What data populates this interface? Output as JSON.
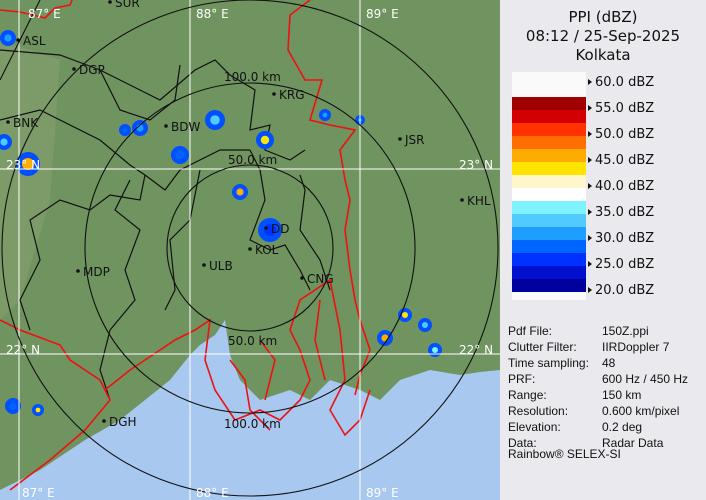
{
  "panel": {
    "product": "PPI (dBZ)",
    "datetime": "08:12 / 25-Sep-2025",
    "site": "Kolkata",
    "legend": {
      "labels": [
        "60.0 dBZ",
        "55.0 dBZ",
        "50.0 dBZ",
        "45.0 dBZ",
        "40.0 dBZ",
        "35.0 dBZ",
        "30.0 dBZ",
        "25.0 dBZ",
        "20.0 dBZ"
      ],
      "colors": [
        "#a00000",
        "#d20000",
        "#ff3200",
        "#ff6e00",
        "#ffac00",
        "#ffe400",
        "#fff6cc",
        "#ffffff",
        "#7ef2ff",
        "#50caff",
        "#1e9eff",
        "#0064ff",
        "#0032ff",
        "#0010cc",
        "#00009c"
      ]
    },
    "info": [
      {
        "key": "Pdf File:",
        "value": "150Z.ppi"
      },
      {
        "key": "Clutter Filter:",
        "value": "IIRDoppler 7"
      },
      {
        "key": "Time sampling:",
        "value": "48"
      },
      {
        "key": "PRF:",
        "value": "600 Hz / 450 Hz"
      },
      {
        "key": "Range:",
        "value": "150 km"
      },
      {
        "key": "Resolution:",
        "value": "0.600 km/pixel"
      },
      {
        "key": "Elevation:",
        "value": "0.2 deg"
      },
      {
        "key": "Data:",
        "value": "Radar Data"
      }
    ],
    "credit": "Rainbow® SELEX-SI"
  },
  "map": {
    "colors": {
      "land": "#6f9460",
      "sea": "#a8c8f0",
      "district": "#111111",
      "border": "#ee1111",
      "rings": "#111111",
      "grid": "#ffffff"
    },
    "grid": {
      "lon": [
        "87° E",
        "88° E",
        "89° E"
      ],
      "lat": [
        "23° N",
        "22° N"
      ]
    },
    "rings": [
      "50.0 km",
      "100.0 km",
      "50.0 km",
      "100.0 km"
    ],
    "cities": [
      "SUR",
      "ASL",
      "DGP",
      "BNK",
      "BDW",
      "KRG",
      "JSR",
      "KHL",
      "DD",
      "KOL",
      "ULB",
      "CNG",
      "MDP",
      "DGH"
    ]
  }
}
